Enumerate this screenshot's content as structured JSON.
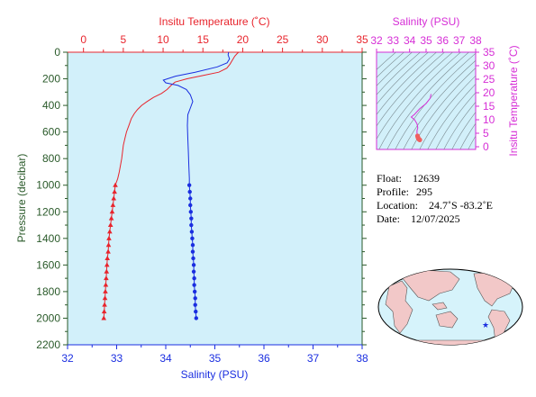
{
  "chart_data": [
    {
      "type": "line",
      "title": "",
      "top_axis": {
        "label": "Insitu Temperature (˚C)",
        "ticks": [
          0,
          5,
          10,
          15,
          20,
          25,
          30,
          35
        ],
        "range": [
          -2,
          35
        ],
        "color": "#e8242c"
      },
      "bottom_axis": {
        "label": "Salinity (PSU)",
        "ticks": [
          32,
          33,
          34,
          35,
          36,
          37,
          38
        ],
        "range": [
          32,
          38
        ],
        "color": "#1a2ee0"
      },
      "left_axis": {
        "label": "Pressure (decibar)",
        "ticks": [
          0,
          200,
          400,
          600,
          800,
          1000,
          1200,
          1400,
          1600,
          1800,
          2000,
          2200
        ],
        "range": [
          0,
          2200
        ],
        "inverted": true,
        "color": "#2a5a2a"
      },
      "series": [
        {
          "quantity": "temperature",
          "color": "#e8242c",
          "marker": "triangle",
          "profile": [
            [
              19.5,
              0
            ],
            [
              19.3,
              10
            ],
            [
              19.0,
              30
            ],
            [
              18.7,
              60
            ],
            [
              18.4,
              90
            ],
            [
              18.0,
              120
            ],
            [
              17.0,
              150
            ],
            [
              15.0,
              175
            ],
            [
              13.0,
              200
            ],
            [
              11.5,
              225
            ],
            [
              11.0,
              250
            ],
            [
              10.5,
              280
            ],
            [
              9.8,
              310
            ],
            [
              8.8,
              340
            ],
            [
              8.0,
              370
            ],
            [
              7.3,
              400
            ],
            [
              6.8,
              430
            ],
            [
              6.4,
              460
            ],
            [
              6.0,
              500
            ],
            [
              5.7,
              550
            ],
            [
              5.4,
              600
            ],
            [
              5.2,
              650
            ],
            [
              5.0,
              700
            ],
            [
              4.8,
              800
            ],
            [
              4.5,
              900
            ],
            [
              4.3,
              950
            ],
            [
              4.0,
              1000
            ]
          ],
          "points": [
            [
              4.0,
              1000
            ],
            [
              3.9,
              1050
            ],
            [
              3.8,
              1100
            ],
            [
              3.7,
              1150
            ],
            [
              3.6,
              1200
            ],
            [
              3.5,
              1250
            ],
            [
              3.4,
              1300
            ],
            [
              3.3,
              1350
            ],
            [
              3.2,
              1400
            ],
            [
              3.15,
              1450
            ],
            [
              3.1,
              1500
            ],
            [
              3.0,
              1550
            ],
            [
              2.95,
              1600
            ],
            [
              2.9,
              1650
            ],
            [
              2.85,
              1700
            ],
            [
              2.8,
              1750
            ],
            [
              2.75,
              1800
            ],
            [
              2.7,
              1850
            ],
            [
              2.65,
              1900
            ],
            [
              2.6,
              1950
            ],
            [
              2.55,
              2000
            ]
          ]
        },
        {
          "quantity": "salinity",
          "color": "#1a2ee0",
          "marker": "circle",
          "profile": [
            [
              35.28,
              0
            ],
            [
              35.27,
              20
            ],
            [
              35.3,
              50
            ],
            [
              35.25,
              80
            ],
            [
              35.05,
              110
            ],
            [
              34.6,
              150
            ],
            [
              34.2,
              180
            ],
            [
              33.95,
              210
            ],
            [
              34.0,
              230
            ],
            [
              34.25,
              250
            ],
            [
              34.42,
              280
            ],
            [
              34.5,
              320
            ],
            [
              34.55,
              370
            ],
            [
              34.5,
              420
            ],
            [
              34.45,
              470
            ],
            [
              34.44,
              550
            ],
            [
              34.45,
              650
            ],
            [
              34.46,
              750
            ],
            [
              34.47,
              850
            ],
            [
              34.48,
              950
            ],
            [
              34.48,
              1000
            ]
          ],
          "points": [
            [
              34.48,
              1000
            ],
            [
              34.49,
              1050
            ],
            [
              34.5,
              1100
            ],
            [
              34.5,
              1150
            ],
            [
              34.51,
              1200
            ],
            [
              34.52,
              1250
            ],
            [
              34.52,
              1300
            ],
            [
              34.53,
              1350
            ],
            [
              34.54,
              1400
            ],
            [
              34.55,
              1450
            ],
            [
              34.55,
              1500
            ],
            [
              34.56,
              1550
            ],
            [
              34.57,
              1600
            ],
            [
              34.57,
              1650
            ],
            [
              34.58,
              1700
            ],
            [
              34.58,
              1750
            ],
            [
              34.59,
              1800
            ],
            [
              34.6,
              1850
            ],
            [
              34.6,
              1900
            ],
            [
              34.61,
              1950
            ],
            [
              34.62,
              2000
            ]
          ]
        }
      ]
    },
    {
      "type": "scatter",
      "title": "",
      "top_axis": {
        "label": "Salinity (PSU)",
        "ticks": [
          32,
          33,
          34,
          35,
          36,
          37,
          38
        ],
        "range": [
          32,
          38
        ],
        "color": "#d62ed6"
      },
      "right_axis": {
        "label": "Insitu Temperature (˚C)",
        "ticks": [
          0,
          5,
          10,
          15,
          20,
          25,
          30,
          35
        ],
        "range": [
          -1,
          35
        ],
        "color": "#d62ed6"
      },
      "ts_curve": [
        [
          35.3,
          19.5
        ],
        [
          35.25,
          18.0
        ],
        [
          35.0,
          16.0
        ],
        [
          34.6,
          14.0
        ],
        [
          34.3,
          12.0
        ],
        [
          34.1,
          11.0
        ],
        [
          34.3,
          10.0
        ],
        [
          34.45,
          8.5
        ],
        [
          34.5,
          7.0
        ],
        [
          34.45,
          6.0
        ],
        [
          34.45,
          5.0
        ],
        [
          34.48,
          4.0
        ]
      ],
      "ts_points": [
        [
          34.48,
          4.0
        ],
        [
          34.5,
          3.6
        ],
        [
          34.52,
          3.2
        ],
        [
          34.55,
          2.9
        ],
        [
          34.58,
          2.7
        ],
        [
          34.62,
          2.55
        ]
      ]
    }
  ],
  "float_info": {
    "float_label": "Float:",
    "float_value": "12639",
    "profile_label": "Profile:",
    "profile_value": "295",
    "location_label": "Location:",
    "location_value": "24.7˚S  -83.2˚E",
    "date_label": "Date:",
    "date_value": "12/07/2025"
  },
  "map": {
    "marker_color": "#1a2ee0",
    "ocean_color": "#d6f3fb",
    "land_color": "#f2c8c8"
  }
}
